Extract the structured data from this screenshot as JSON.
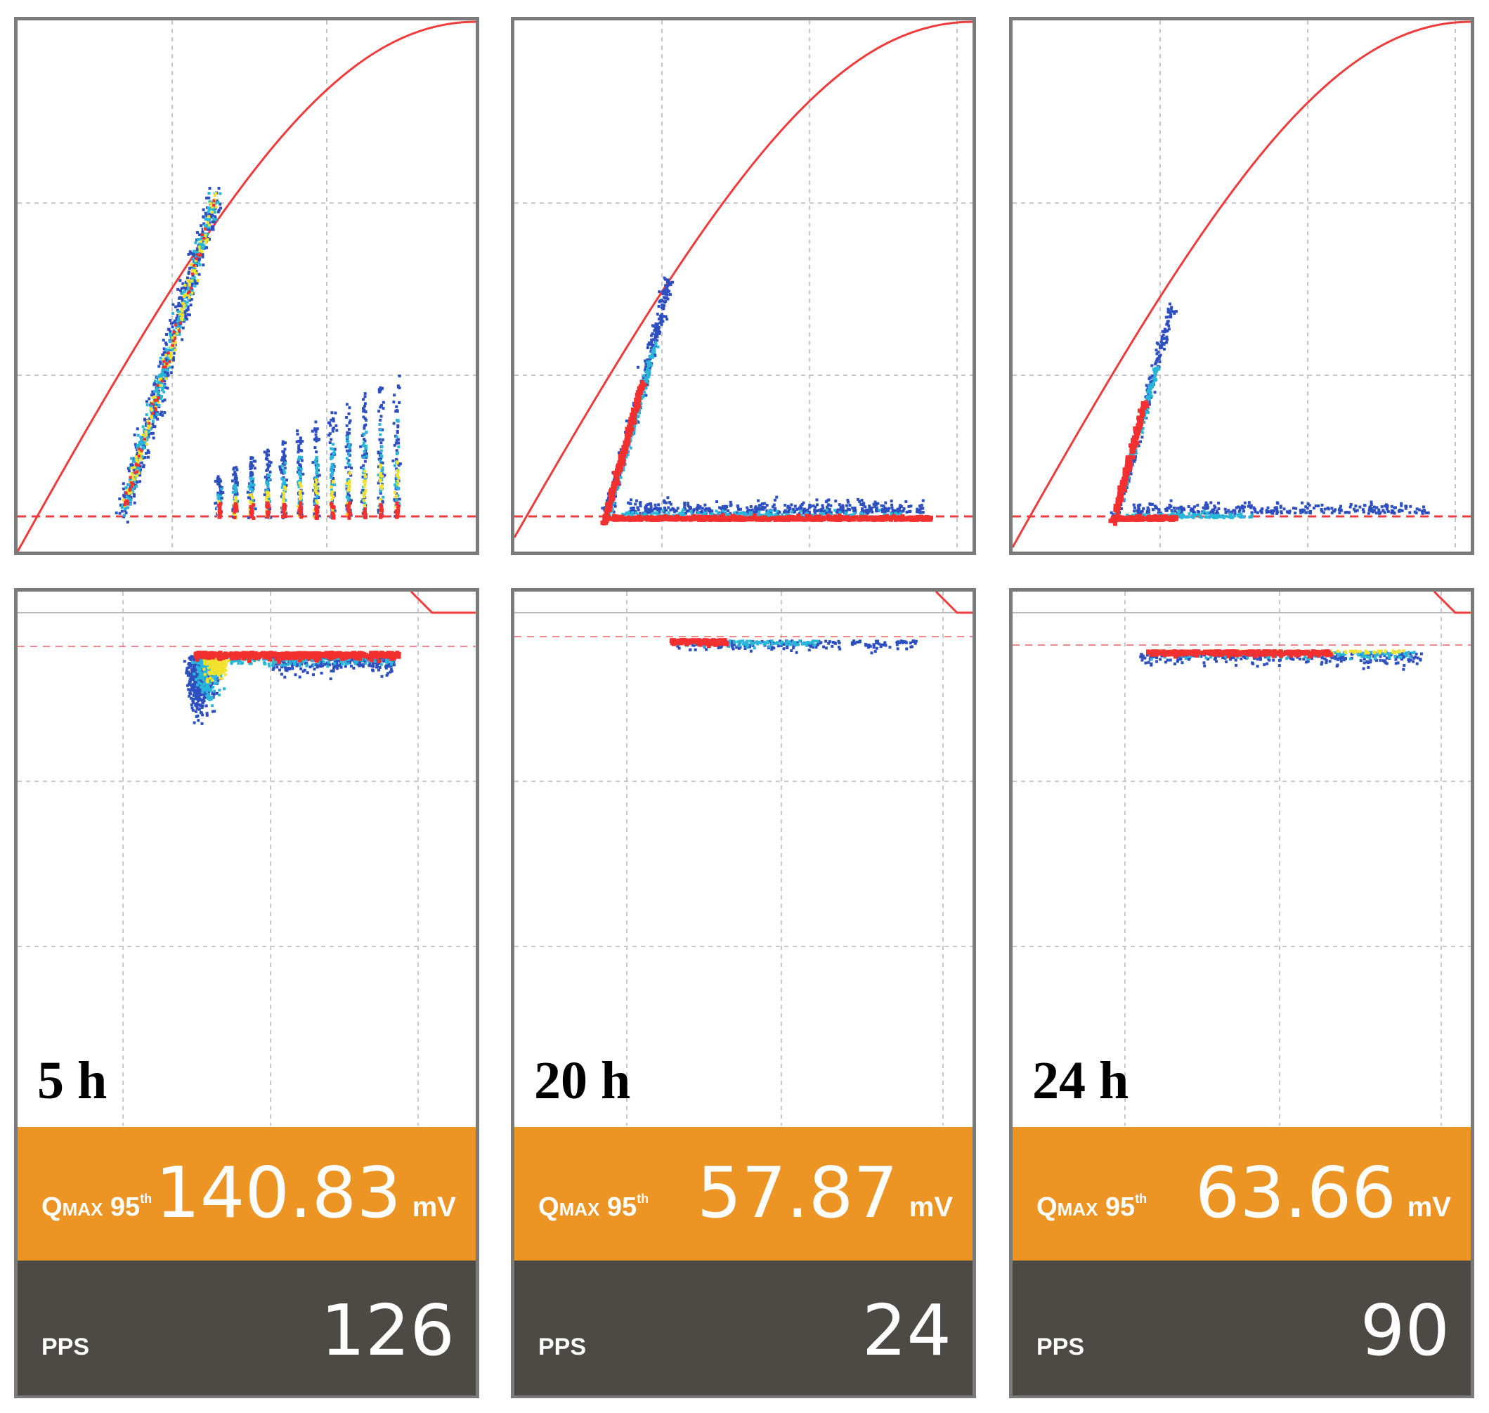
{
  "colors": {
    "frame": "#7a7a7a",
    "grid": "#c8c8c8",
    "curve": "#ee3b3b",
    "qmax_bar": "#ec9424",
    "pps_bar": "#4d4a45",
    "density_low": "#2d4fbf",
    "density_mid": "#29b6d8",
    "density_high": "#f2e22f",
    "density_max": "#f23030"
  },
  "panels": [
    {
      "time_label": "5 h",
      "qmax_label": {
        "main": "Q",
        "sub": "MAX",
        "pct": "95",
        "suffix": "th"
      },
      "qmax_value": "140.83",
      "qmax_unit": "mV",
      "pps_label": "PPS",
      "pps_value": "126",
      "scatter": "5h"
    },
    {
      "time_label": "20 h",
      "qmax_label": {
        "main": "Q",
        "sub": "MAX",
        "pct": "95",
        "suffix": "th"
      },
      "qmax_value": "57.87",
      "qmax_unit": "mV",
      "pps_label": "PPS",
      "pps_value": "24",
      "scatter": "20h"
    },
    {
      "time_label": "24 h",
      "qmax_label": {
        "main": "Q",
        "sub": "MAX",
        "pct": "95",
        "suffix": "th"
      },
      "qmax_value": "63.66",
      "qmax_unit": "mV",
      "pps_label": "PPS",
      "pps_value": "90",
      "scatter": "24h"
    }
  ]
}
